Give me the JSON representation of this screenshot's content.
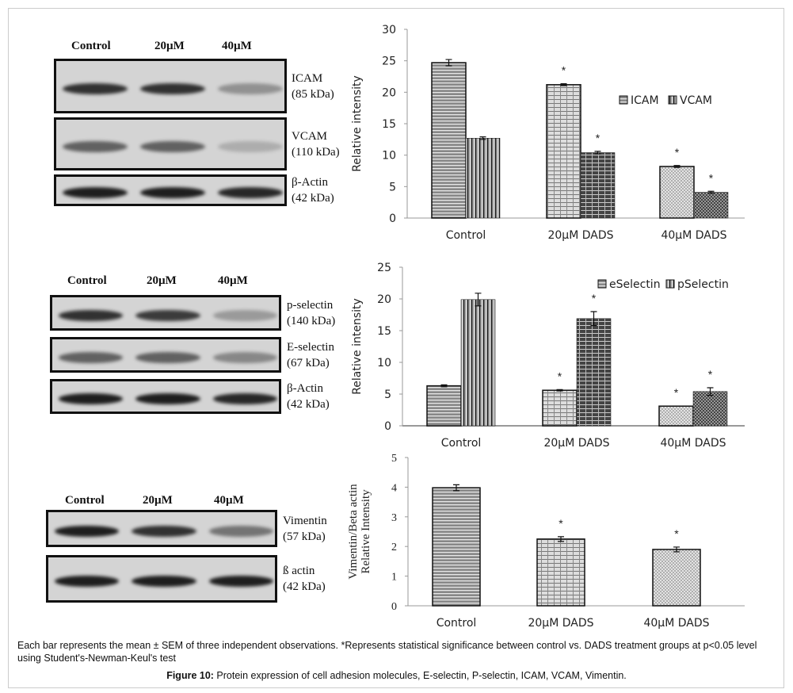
{
  "blots": [
    {
      "lanes": [
        "Control",
        "20µM",
        "40µM"
      ],
      "rows": [
        {
          "name": "ICAM",
          "kda": "(85 kDa)",
          "intensity": [
            0.85,
            0.85,
            0.35
          ]
        },
        {
          "name": "VCAM",
          "kda": "(110 kDa)",
          "intensity": [
            0.6,
            0.6,
            0.2
          ]
        },
        {
          "name": "β-Actin",
          "kda": "(42 kDa)",
          "intensity": [
            0.95,
            0.95,
            0.9
          ]
        }
      ]
    },
    {
      "lanes": [
        "Control",
        "20µM",
        "40µM"
      ],
      "rows": [
        {
          "name": "p-selectin",
          "kda": "(140 kDa)",
          "intensity": [
            0.85,
            0.8,
            0.3
          ]
        },
        {
          "name": "E-selectin",
          "kda": "(67 kDa)",
          "intensity": [
            0.6,
            0.6,
            0.4
          ]
        },
        {
          "name": "β-Actin",
          "kda": "(42 kDa)",
          "intensity": [
            0.95,
            0.95,
            0.9
          ]
        }
      ]
    },
    {
      "lanes": [
        "Control",
        "20µM",
        "40µM"
      ],
      "rows": [
        {
          "name": "Vimentin",
          "kda": "(57 kDa)",
          "intensity": [
            0.95,
            0.85,
            0.5
          ]
        },
        {
          "name": "ß actin",
          "kda": "(42 kDa)",
          "intensity": [
            0.95,
            0.95,
            0.95
          ]
        }
      ]
    }
  ],
  "chart_data": [
    {
      "type": "bar",
      "categories": [
        "Control",
        "20µM DADS",
        "40µM DADS"
      ],
      "ylabel": "Relative intensity",
      "ylim": [
        0,
        30
      ],
      "yticks": [
        0,
        5,
        10,
        15,
        20,
        25,
        30
      ],
      "legend": "right",
      "series": [
        {
          "name": "ICAM",
          "values": [
            24.7,
            21.2,
            8.2
          ],
          "errors": [
            0.5,
            0.15,
            0.15
          ],
          "significant": [
            false,
            true,
            true
          ]
        },
        {
          "name": "VCAM",
          "values": [
            12.7,
            10.4,
            4.1
          ],
          "errors": [
            0.2,
            0.2,
            0.15
          ],
          "significant": [
            false,
            true,
            true
          ]
        }
      ],
      "annotation": "*"
    },
    {
      "type": "bar",
      "categories": [
        "Control",
        "20µM DADS",
        "40µM DADS"
      ],
      "ylabel": "Relative intensity",
      "ylim": [
        0,
        25
      ],
      "yticks": [
        0,
        5,
        10,
        15,
        20,
        25
      ],
      "legend": "top-right",
      "series": [
        {
          "name": "eSelectin",
          "values": [
            6.3,
            5.6,
            3.1
          ],
          "errors": [
            0.15,
            0.1,
            0
          ],
          "significant": [
            false,
            true,
            true
          ]
        },
        {
          "name": "pSelectin",
          "values": [
            19.9,
            16.9,
            5.4
          ],
          "errors": [
            1.0,
            1.1,
            0.6
          ],
          "significant": [
            false,
            true,
            true
          ]
        }
      ],
      "annotation": "*"
    },
    {
      "type": "bar",
      "categories": [
        "Control",
        "20µM DADS",
        "40µM DADS"
      ],
      "ylabel": [
        "Vimentin/Beta actin",
        "Relative Intensity"
      ],
      "ylim": [
        0,
        5
      ],
      "yticks": [
        0,
        1,
        2,
        3,
        4,
        5
      ],
      "series": [
        {
          "values": [
            3.98,
            2.25,
            1.9
          ],
          "errors": [
            0.1,
            0.08,
            0.08
          ],
          "significant": [
            false,
            true,
            true
          ]
        }
      ],
      "annotation": "*"
    }
  ],
  "caption": "Each bar represents the mean ± SEM of three independent observations. *Represents statistical significance between control vs. DADS treatment groups at p<0.05 level using Student's-Newman-Keul's test",
  "figure_label": "Figure 10:",
  "figure_title": " Protein expression of cell adhesion molecules, E-selectin, P-selectin, ICAM, VCAM, Vimentin."
}
